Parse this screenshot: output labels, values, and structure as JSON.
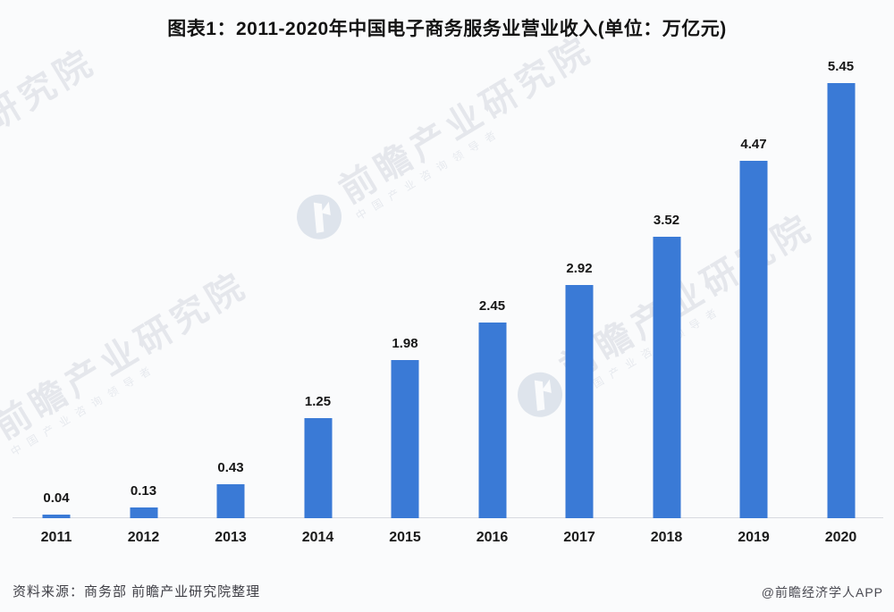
{
  "title": "图表1：2011-2020年中国电子商务服务业营业收入(单位：万亿元)",
  "chart_data": {
    "type": "bar",
    "title": "图表1：2011-2020年中国电子商务服务业营业收入(单位：万亿元)",
    "categories": [
      "2011",
      "2012",
      "2013",
      "2014",
      "2015",
      "2016",
      "2017",
      "2018",
      "2019",
      "2020"
    ],
    "values": [
      0.04,
      0.13,
      0.43,
      1.25,
      1.98,
      2.45,
      2.92,
      3.52,
      4.47,
      5.45
    ],
    "unit": "万亿元",
    "xlabel": "",
    "ylabel": "",
    "ylim": [
      0,
      5.8
    ],
    "grid": "off",
    "legend": "none",
    "value_labels": "on",
    "bar_color": "#3a7ad6",
    "axis_line_color": "#d8dbe0",
    "label_color": "#161616"
  },
  "footer": {
    "source": "资料来源：商务部 前瞻产业研究院整理",
    "credit": "@前瞻经济学人APP"
  },
  "watermark": {
    "text": "前瞻产业研究院",
    "subtext": "中国产业咨询领导者",
    "logo": "qianzhan-logo"
  }
}
